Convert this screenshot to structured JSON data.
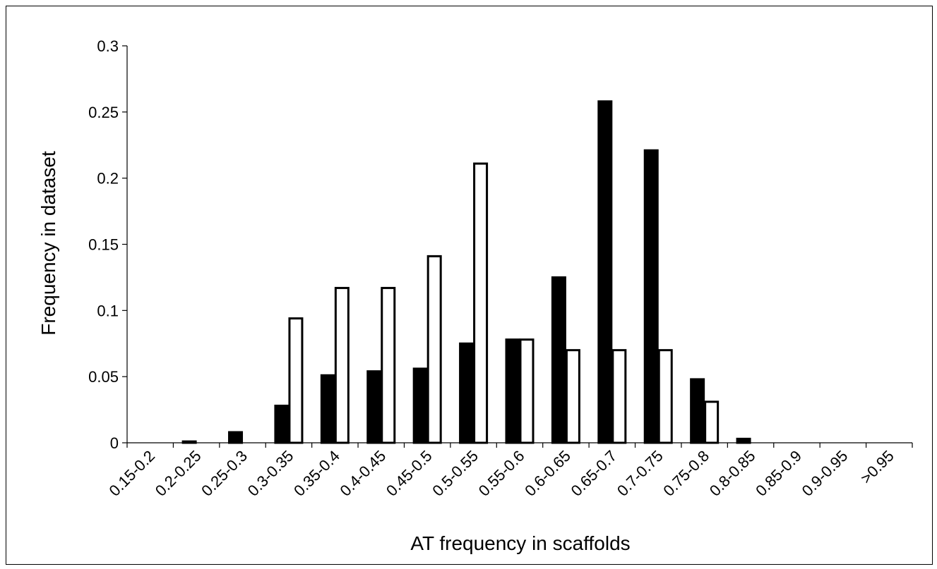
{
  "chart_data": {
    "type": "bar",
    "title": "",
    "xlabel": "AT frequency in scaffolds",
    "ylabel": "Frequency in dataset",
    "ylim": [
      0,
      0.3
    ],
    "yticks": [
      "0",
      "0.05",
      "0.1",
      "0.15",
      "0.2",
      "0.25",
      "0.3"
    ],
    "ytick_values": [
      0,
      0.05,
      0.1,
      0.15,
      0.2,
      0.25,
      0.3
    ],
    "grid": false,
    "legend": "none",
    "categories": [
      "0.15-0.2",
      "0.2-0.25",
      "0.25-0.3",
      "0.3-0.35",
      "0.35-0.4",
      "0.4-0.45",
      "0.45-0.5",
      "0.5-0.55",
      "0.55-0.6",
      "0.6-0.65",
      "0.65-0.7",
      "0.7-0.75",
      "0.75-0.8",
      "0.8-0.85",
      "0.85-0.9",
      "0.9-0.95",
      ">0.95"
    ],
    "series": [
      {
        "fill": "#000000",
        "values": [
          0,
          0.001,
          0.008,
          0.028,
          0.051,
          0.054,
          0.056,
          0.075,
          0.078,
          0.125,
          0.258,
          0.221,
          0.048,
          0.003,
          0,
          0,
          0
        ]
      },
      {
        "fill": "#ffffff",
        "values": [
          0,
          0,
          0,
          0.094,
          0.117,
          0.117,
          0.141,
          0.211,
          0.078,
          0.07,
          0.07,
          0.07,
          0.031,
          0,
          0,
          0,
          0
        ]
      }
    ]
  }
}
